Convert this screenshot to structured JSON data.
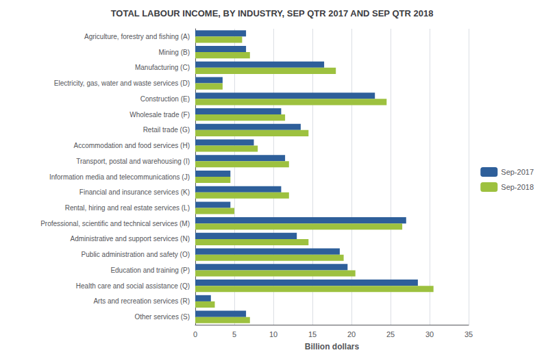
{
  "chart_data": {
    "type": "bar",
    "orientation": "horizontal",
    "title": "TOTAL LABOUR INCOME, BY INDUSTRY, SEP QTR 2017 AND SEP QTR 2018",
    "xlabel": "Billion dollars",
    "categories": [
      "Agriculture, forestry and fishing (A)",
      "Mining (B)",
      "Manufacturing (C)",
      "Electricity, gas, water and waste services (D)",
      "Construction (E)",
      "Wholesale trade (F)",
      "Retail trade (G)",
      "Accommodation and food services (H)",
      "Transport, postal and warehousing (I)",
      "Information media and telecommunications (J)",
      "Financial and insurance services (K)",
      "Rental, hiring and real estate services (L)",
      "Professional, scientific and technical services (M)",
      "Administrative and support services (N)",
      "Public administration and safety (O)",
      "Education and training (P)",
      "Health care and social assistance (Q)",
      "Arts and recreation services (R)",
      "Other services (S)"
    ],
    "series": [
      {
        "name": "Sep-2017",
        "color": "#2E5F9A",
        "values": [
          6.5,
          6.5,
          16.5,
          3.5,
          23.0,
          11.0,
          13.5,
          7.5,
          11.5,
          4.5,
          11.0,
          4.5,
          27.0,
          13.0,
          18.5,
          19.5,
          28.5,
          2.0,
          6.5
        ]
      },
      {
        "name": "Sep-2018",
        "color": "#9DC13F",
        "values": [
          6.0,
          7.0,
          18.0,
          3.5,
          24.5,
          11.5,
          14.5,
          8.0,
          12.0,
          4.5,
          12.0,
          5.0,
          26.5,
          14.5,
          19.0,
          20.5,
          30.5,
          2.5,
          7.0
        ]
      }
    ],
    "xlim": [
      0,
      35
    ],
    "xticks": [
      0,
      5,
      10,
      15,
      20,
      25,
      30,
      35
    ],
    "grid": true,
    "legend": "right"
  }
}
